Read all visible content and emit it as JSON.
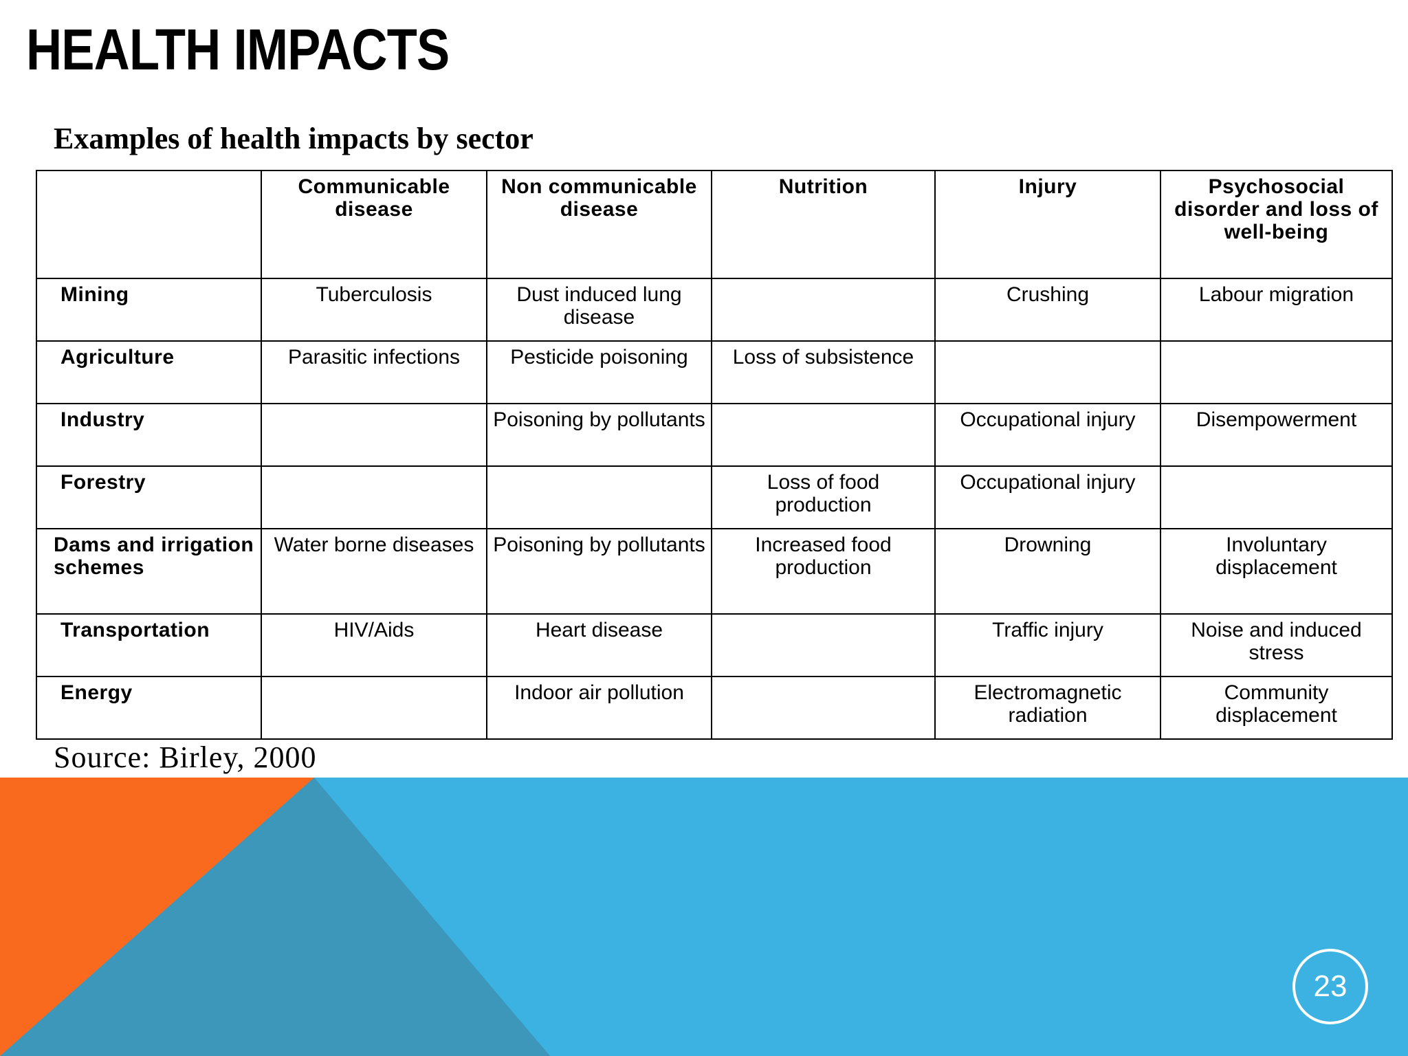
{
  "slide": {
    "title": "HEALTH IMPACTS",
    "caption": "Examples of health impacts by sector",
    "source": "Source: Birley, 2000",
    "page_number": "23"
  },
  "colors": {
    "orange": "#FA6A1E",
    "blue": "#3BB2E2",
    "overlap": "#3C97BA"
  },
  "table": {
    "headers": [
      "",
      "Communicable disease",
      "Non communicable disease",
      "Nutrition",
      "Injury",
      "Psychosocial disorder and loss of well-being"
    ],
    "rows": [
      {
        "sector": "Mining",
        "cells": [
          "Tuberculosis",
          "Dust induced lung disease",
          "",
          "Crushing",
          "Labour migration"
        ]
      },
      {
        "sector": "Agriculture",
        "cells": [
          "Parasitic infections",
          "Pesticide poisoning",
          "Loss of subsistence",
          "",
          ""
        ]
      },
      {
        "sector": "Industry",
        "cells": [
          "",
          "Poisoning by pollutants",
          "",
          "Occupational injury",
          "Disempowerment"
        ]
      },
      {
        "sector": "Forestry",
        "cells": [
          "",
          "",
          "Loss of food production",
          "Occupational injury",
          ""
        ]
      },
      {
        "sector": "Dams and irrigation schemes",
        "cells": [
          "Water borne diseases",
          "Poisoning by pollutants",
          "Increased food production",
          "Drowning",
          "Involuntary displacement"
        ]
      },
      {
        "sector": "Transportation",
        "cells": [
          "HIV/Aids",
          "Heart disease",
          "",
          "Traffic injury",
          "Noise and induced stress"
        ]
      },
      {
        "sector": "Energy",
        "cells": [
          "",
          "Indoor air pollution",
          "",
          "Electromagnetic radiation",
          "Community displacement"
        ]
      }
    ]
  }
}
